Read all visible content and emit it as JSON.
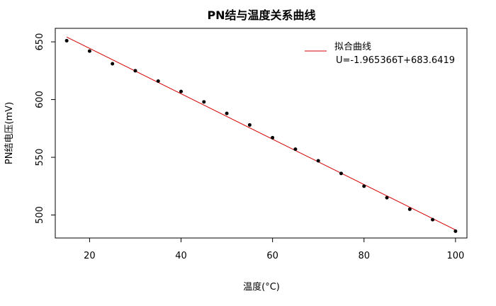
{
  "chart_data": {
    "type": "scatter",
    "title": "PN结与温度关系曲线",
    "xlabel": "温度(°C)",
    "ylabel": "PN结电压(mV)",
    "xlim": [
      12.5,
      102.5
    ],
    "ylim": [
      480.1,
      661.7
    ],
    "xticks": [
      20,
      40,
      60,
      80,
      100
    ],
    "yticks": [
      500,
      550,
      600,
      650
    ],
    "x": [
      15,
      20,
      25,
      30,
      35,
      40,
      45,
      50,
      55,
      60,
      65,
      70,
      75,
      80,
      85,
      90,
      95,
      100
    ],
    "y": [
      651,
      642,
      631,
      625,
      616,
      607,
      598,
      588,
      578,
      567,
      557,
      547,
      536,
      525,
      515,
      505,
      496,
      486
    ],
    "point_color": "#000000",
    "fit": {
      "slope": -1.965366,
      "intercept": 683.6419,
      "x_range": [
        15,
        100
      ],
      "color": "#d40000",
      "legend_label": "拟合曲线",
      "equation": "U=-1.965366T+683.6419"
    },
    "legend_position": "top-right"
  }
}
